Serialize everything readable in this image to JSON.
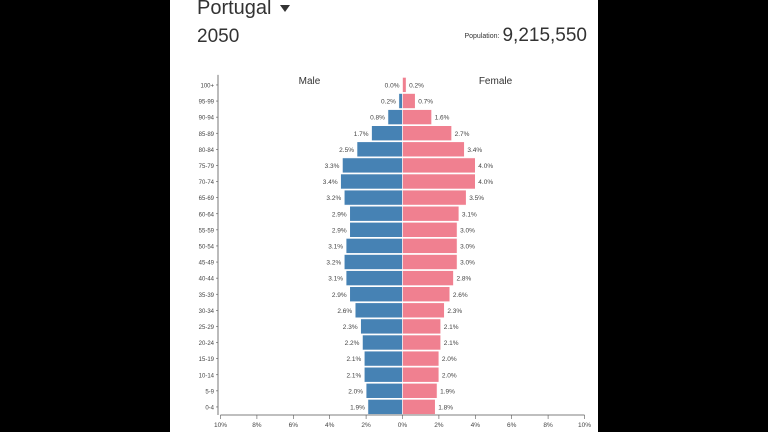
{
  "header": {
    "country": "Portugal",
    "caret_icon": "caret-down-icon",
    "year": "2050",
    "population_label": "Population:",
    "population_value": "9,215,550"
  },
  "chart_data": {
    "type": "bar",
    "orientation": "horizontal-pyramid",
    "male_label": "Male",
    "female_label": "Female",
    "colors": {
      "male": "#4682b4",
      "female": "#f08090",
      "axis": "#555555"
    },
    "categories": [
      "0-4",
      "5-9",
      "10-14",
      "15-19",
      "20-24",
      "25-29",
      "30-34",
      "35-39",
      "40-44",
      "45-49",
      "50-54",
      "55-59",
      "60-64",
      "65-69",
      "70-74",
      "75-79",
      "80-84",
      "85-89",
      "90-94",
      "95-99",
      "100+"
    ],
    "series": [
      {
        "name": "Male",
        "values": [
          1.9,
          2.0,
          2.1,
          2.1,
          2.2,
          2.3,
          2.6,
          2.9,
          3.1,
          3.2,
          3.1,
          2.9,
          2.9,
          3.2,
          3.4,
          3.3,
          2.5,
          1.7,
          0.8,
          0.2,
          0.0
        ],
        "value_labels": [
          "1.9%",
          "2.0%",
          "2.1%",
          "2.1%",
          "2.2%",
          "2.3%",
          "2.6%",
          "2.9%",
          "3.1%",
          "3.2%",
          "3.1%",
          "2.9%",
          "2.9%",
          "3.2%",
          "3.4%",
          "3.3%",
          "2.5%",
          "1.7%",
          "0.8%",
          "0.2%",
          "0.0%"
        ]
      },
      {
        "name": "Female",
        "values": [
          1.8,
          1.9,
          2.0,
          2.0,
          2.1,
          2.1,
          2.3,
          2.6,
          2.8,
          3.0,
          3.0,
          3.0,
          3.1,
          3.5,
          4.0,
          4.0,
          3.4,
          2.7,
          1.6,
          0.7,
          0.2
        ],
        "value_labels": [
          "1.8%",
          "1.9%",
          "2.0%",
          "2.0%",
          "2.1%",
          "2.1%",
          "2.3%",
          "2.6%",
          "2.8%",
          "3.0%",
          "3.0%",
          "3.0%",
          "3.1%",
          "3.5%",
          "4.0%",
          "4.0%",
          "3.4%",
          "2.7%",
          "1.6%",
          "0.7%",
          "0.2%"
        ]
      }
    ],
    "x_ticks": [
      "10%",
      "8%",
      "6%",
      "4%",
      "2%",
      "0%",
      "2%",
      "4%",
      "6%",
      "8%",
      "10%"
    ],
    "xlim": [
      -10,
      10
    ]
  }
}
